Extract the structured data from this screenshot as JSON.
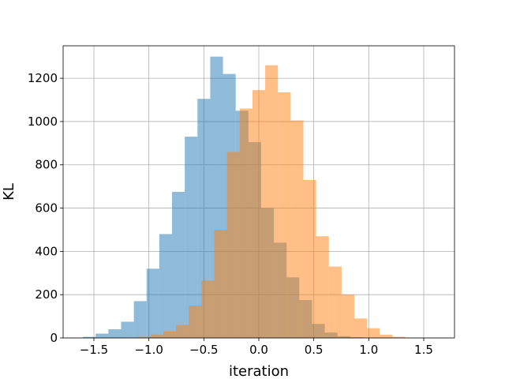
{
  "chart_data": {
    "type": "bar",
    "xlabel": "iteration",
    "ylabel": "KL",
    "xlim": [
      -1.78,
      1.78
    ],
    "ylim": [
      0,
      1350
    ],
    "grid": true,
    "xticks": [
      -1.5,
      -1.0,
      -0.5,
      0.0,
      0.5,
      1.0,
      1.5
    ],
    "xtick_labels": [
      "−1.5",
      "−1.0",
      "−0.5",
      "0.0",
      "0.5",
      "1.0",
      "1.5"
    ],
    "yticks": [
      0,
      200,
      400,
      600,
      800,
      1000,
      1200
    ],
    "ytick_labels": [
      "0",
      "200",
      "400",
      "600",
      "800",
      "1000",
      "1200"
    ],
    "series": [
      {
        "color": "#1f77b4",
        "opacity": 0.5,
        "bin_start": -1.6,
        "bin_width": 0.1158,
        "counts": [
          5,
          20,
          40,
          75,
          170,
          320,
          480,
          675,
          930,
          1105,
          1300,
          1220,
          1050,
          905,
          600,
          440,
          280,
          175,
          65,
          25,
          8,
          3
        ]
      },
      {
        "color": "#ff7f0e",
        "opacity": 0.5,
        "bin_start": -1.1,
        "bin_width": 0.1158,
        "counts": [
          5,
          15,
          30,
          60,
          150,
          265,
          500,
          860,
          1060,
          1145,
          1260,
          1135,
          1005,
          730,
          470,
          330,
          200,
          90,
          45,
          15,
          5
        ]
      }
    ]
  }
}
